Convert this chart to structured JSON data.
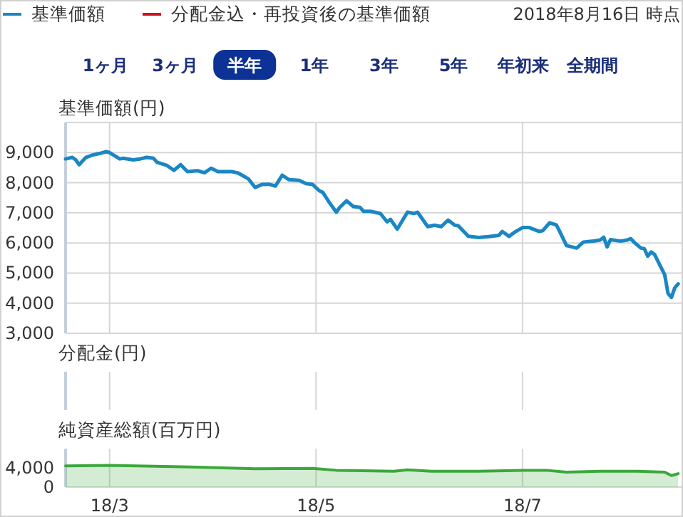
{
  "chart_data": [
    {
      "type": "line",
      "title": "基準価額(円)",
      "annotations": [
        "2018年8月16日 時点",
        "1ヶ月",
        "3ヶ月",
        "半年",
        "1年",
        "3年",
        "5年",
        "年初来",
        "全期間"
      ],
      "legend": "top left",
      "tick_labels": "y",
      "grid": true,
      "xlim": [
        "2018-02-16",
        "2018-08-17"
      ],
      "xticks": [
        {
          "value": "2018-03-01",
          "label": null
        },
        {
          "value": "2018-05-01",
          "label": null
        },
        {
          "value": "2018-07-01",
          "label": null
        }
      ],
      "ylim": [
        3000,
        10000
      ],
      "yticks": [
        {
          "value": 3000,
          "label": "3,000"
        },
        {
          "value": 4000,
          "label": "4,000"
        },
        {
          "value": 5000,
          "label": "5,000"
        },
        {
          "value": 6000,
          "label": "6,000"
        },
        {
          "value": 7000,
          "label": "7,000"
        },
        {
          "value": 8000,
          "label": "8,000"
        },
        {
          "value": 9000,
          "label": "9,000"
        },
        {
          "value": 10000,
          "label": null
        }
      ],
      "series": [
        {
          "name": "基準価額",
          "color": "#1a87c4",
          "x": [
            "2018-02-16",
            "2018-02-18",
            "2018-02-19",
            "2018-02-20",
            "2018-02-22",
            "2018-02-24",
            "2018-02-26",
            "2018-02-28",
            "2018-03-01",
            "2018-03-04",
            "2018-03-05",
            "2018-03-08",
            "2018-03-10",
            "2018-03-12",
            "2018-03-14",
            "2018-03-15",
            "2018-03-18",
            "2018-03-20",
            "2018-03-22",
            "2018-03-24",
            "2018-03-27",
            "2018-03-29",
            "2018-03-31",
            "2018-04-02",
            "2018-04-06",
            "2018-04-08",
            "2018-04-11",
            "2018-04-13",
            "2018-04-15",
            "2018-04-17",
            "2018-04-19",
            "2018-04-21",
            "2018-04-23",
            "2018-04-26",
            "2018-04-28",
            "2018-04-30",
            "2018-05-02",
            "2018-05-03",
            "2018-05-05",
            "2018-05-07",
            "2018-05-08",
            "2018-05-10",
            "2018-05-12",
            "2018-05-14",
            "2018-05-15",
            "2018-05-17",
            "2018-05-20",
            "2018-05-22",
            "2018-05-23",
            "2018-05-25",
            "2018-05-28",
            "2018-05-30",
            "2018-05-31",
            "2018-06-03",
            "2018-06-05",
            "2018-06-07",
            "2018-06-09",
            "2018-06-11",
            "2018-06-12",
            "2018-06-15",
            "2018-06-18",
            "2018-06-21",
            "2018-06-24",
            "2018-06-25",
            "2018-06-27",
            "2018-06-29",
            "2018-07-01",
            "2018-07-03",
            "2018-07-06",
            "2018-07-07",
            "2018-07-09",
            "2018-07-11",
            "2018-07-12",
            "2018-07-14",
            "2018-07-17",
            "2018-07-19",
            "2018-07-22",
            "2018-07-24",
            "2018-07-25",
            "2018-07-26",
            "2018-07-27",
            "2018-07-30",
            "2018-08-01",
            "2018-08-02",
            "2018-08-03",
            "2018-08-05",
            "2018-08-06",
            "2018-08-07",
            "2018-08-08",
            "2018-08-09",
            "2018-08-10",
            "2018-08-12",
            "2018-08-13",
            "2018-08-14",
            "2018-08-15",
            "2018-08-16"
          ],
          "values": [
            8790,
            8840,
            8760,
            8600,
            8840,
            8920,
            8970,
            9030,
            9000,
            8790,
            8810,
            8760,
            8790,
            8840,
            8810,
            8680,
            8570,
            8410,
            8600,
            8370,
            8400,
            8330,
            8480,
            8370,
            8370,
            8320,
            8130,
            7840,
            7940,
            7950,
            7890,
            8250,
            8100,
            8080,
            7970,
            7940,
            7730,
            7680,
            7330,
            7020,
            7180,
            7400,
            7210,
            7180,
            7050,
            7050,
            6980,
            6700,
            6780,
            6460,
            7020,
            6980,
            7020,
            6540,
            6590,
            6540,
            6760,
            6590,
            6570,
            6220,
            6180,
            6210,
            6250,
            6380,
            6220,
            6380,
            6510,
            6510,
            6380,
            6410,
            6670,
            6600,
            6380,
            5910,
            5830,
            6030,
            6060,
            6100,
            6190,
            5870,
            6110,
            6060,
            6100,
            6140,
            6020,
            5830,
            5810,
            5560,
            5700,
            5620,
            5400,
            4950,
            4320,
            4190,
            4510,
            4640
          ]
        },
        {
          "name": "分配金込・再投資後の基準価額",
          "color": "#d0101b"
        }
      ]
    },
    {
      "type": "other",
      "title": "分配金(円)"
    },
    {
      "type": "area",
      "title": "純資産総額(百万円)",
      "grid": "x",
      "xlim": [
        "2018-02-16",
        "2018-08-17"
      ],
      "xticks": [
        {
          "value": "2018-03-01",
          "label": "18/3"
        },
        {
          "value": "2018-05-01",
          "label": "18/5"
        },
        {
          "value": "2018-07-01",
          "label": "18/7"
        }
      ],
      "ylim": [
        0,
        8000
      ],
      "yticks": [
        {
          "value": 0,
          "label": "0"
        },
        {
          "value": 4000,
          "label": "4,000"
        }
      ],
      "series": [
        {
          "color": "#3aa83a",
          "x": [
            "2018-02-16",
            "2018-03-01",
            "2018-03-25",
            "2018-04-13",
            "2018-04-30",
            "2018-05-07",
            "2018-05-24",
            "2018-05-28",
            "2018-06-04",
            "2018-06-18",
            "2018-07-01",
            "2018-07-08",
            "2018-07-14",
            "2018-07-24",
            "2018-08-04",
            "2018-08-12",
            "2018-08-14",
            "2018-08-15",
            "2018-08-16"
          ],
          "values": [
            4400,
            4500,
            4200,
            3800,
            3900,
            3500,
            3300,
            3600,
            3300,
            3300,
            3500,
            3500,
            3100,
            3300,
            3300,
            3100,
            2400,
            2600,
            2800
          ]
        }
      ]
    }
  ]
}
